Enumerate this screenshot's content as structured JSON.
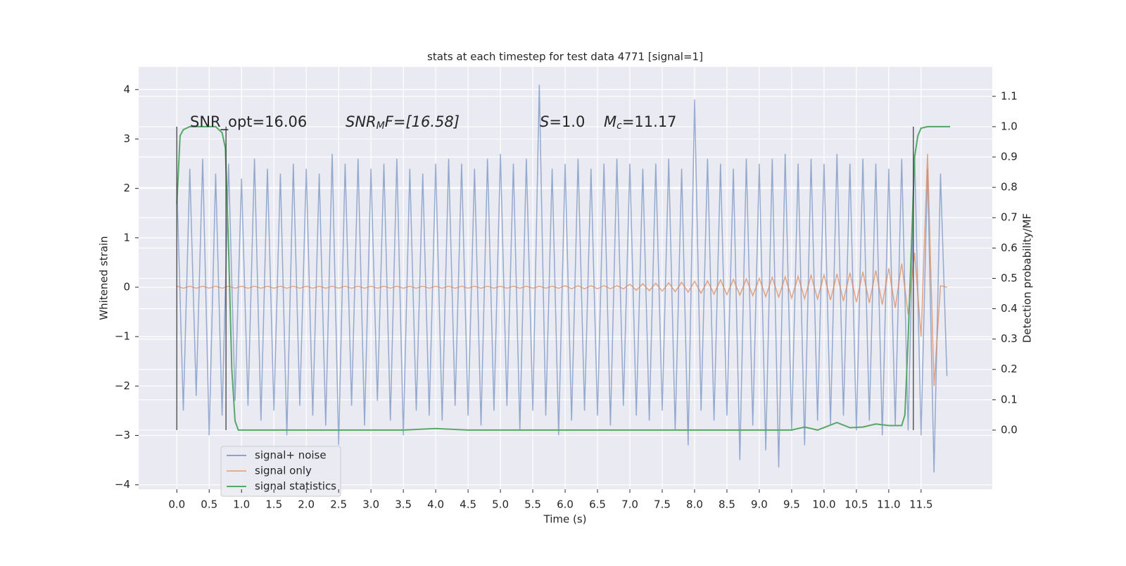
{
  "chart_data": {
    "type": "line",
    "title": "stats at each timestep for test data 4771 [signal=1]",
    "xlabel": "Time (s)",
    "ylabel": "Whitened strain",
    "y2label": "Detection probability/MF",
    "xlim": [
      -0.59,
      12.6
    ],
    "ylim": [
      -4.09,
      4.46
    ],
    "y2lim": [
      -0.195,
      1.197
    ],
    "xticks": [
      {
        "value": 0,
        "label": "0.0"
      },
      0.5,
      {
        "value": 1,
        "label": "1.0"
      },
      1.5,
      {
        "value": 2,
        "label": "2.0"
      },
      2.5,
      {
        "value": 3,
        "label": "3.0"
      },
      3.5,
      {
        "value": 4,
        "label": "4.0"
      },
      4.5,
      {
        "value": 5,
        "label": "5.0"
      },
      5.5,
      {
        "value": 6,
        "label": "6.0"
      },
      6.5,
      {
        "value": 7,
        "label": "7.0"
      },
      7.5,
      {
        "value": 8,
        "label": "8.0"
      },
      8.5,
      {
        "value": 9,
        "label": "9.0"
      },
      9.5,
      {
        "value": 10,
        "label": "10.0"
      },
      10.5,
      {
        "value": 11,
        "label": "11.0"
      },
      11.5
    ],
    "yticks": [
      {
        "value": -4,
        "label": "−4"
      },
      {
        "value": -3,
        "label": "−3"
      },
      {
        "value": -2,
        "label": "−2"
      },
      {
        "value": -1,
        "label": "−1"
      },
      0,
      1,
      2,
      3,
      4
    ],
    "y2ticks": [
      {
        "value": 0,
        "label": "0.0"
      },
      0.1,
      0.2,
      0.3,
      0.4,
      0.5,
      0.6,
      0.7,
      0.8,
      0.9,
      {
        "value": 1,
        "label": "1.0"
      },
      1.1
    ],
    "grid": true,
    "legend": "lower left",
    "annotations": [
      {
        "text": "SNR_opt=16.06"
      },
      {
        "base": "SNR",
        "sub": "M",
        "rest": "F=[16.58]"
      },
      {
        "base": "S",
        "rest": "=1.0"
      },
      {
        "base": "M",
        "sub": "c",
        "rest": "=11.17"
      }
    ],
    "vlines": {
      "color": "#333333",
      "x": [
        0,
        0.76,
        11.38
      ]
    },
    "x": [
      0.0,
      0.1,
      0.2,
      0.3,
      0.4,
      0.5,
      0.6,
      0.7,
      0.8,
      0.9,
      1.0,
      1.1,
      1.2,
      1.3,
      1.4,
      1.5,
      1.6,
      1.7,
      1.8,
      1.9,
      2.0,
      2.1,
      2.2,
      2.3,
      2.4,
      2.5,
      2.6,
      2.7,
      2.8,
      2.9,
      3.0,
      3.1,
      3.2,
      3.3,
      3.4,
      3.5,
      3.6,
      3.7,
      3.8,
      3.9,
      4.0,
      4.1,
      4.2,
      4.3,
      4.4,
      4.5,
      4.6,
      4.7,
      4.8,
      4.9,
      5.0,
      5.1,
      5.2,
      5.3,
      5.4,
      5.5,
      5.6,
      5.7,
      5.8,
      5.9,
      6.0,
      6.1,
      6.2,
      6.3,
      6.4,
      6.5,
      6.6,
      6.7,
      6.8,
      6.9,
      7.0,
      7.1,
      7.2,
      7.3,
      7.4,
      7.5,
      7.6,
      7.7,
      7.8,
      7.9,
      8.0,
      8.1,
      8.2,
      8.3,
      8.4,
      8.5,
      8.6,
      8.7,
      8.8,
      8.9,
      9.0,
      9.1,
      9.2,
      9.3,
      9.4,
      9.5,
      9.6,
      9.7,
      9.8,
      9.9,
      10.0,
      10.1,
      10.2,
      10.3,
      10.4,
      10.5,
      10.6,
      10.7,
      10.8,
      10.9,
      11.0,
      11.1,
      11.2,
      11.3,
      11.4,
      11.5,
      11.6,
      11.7,
      11.8,
      11.9
    ],
    "series": [
      {
        "name": "signal+ noise",
        "color": "#4c72b0",
        "values": [
          2.1,
          -2.5,
          2.4,
          -2.2,
          2.6,
          -3.0,
          2.3,
          -2.6,
          2.5,
          -2.3,
          2.2,
          -2.4,
          2.6,
          -2.7,
          2.4,
          -2.5,
          2.3,
          -3.0,
          2.5,
          -2.4,
          2.4,
          -2.6,
          2.3,
          -2.8,
          2.7,
          -3.2,
          2.5,
          -2.4,
          2.6,
          -2.8,
          2.4,
          -2.3,
          2.5,
          -2.7,
          2.6,
          -3.0,
          2.4,
          -2.5,
          2.3,
          -2.6,
          2.5,
          -2.7,
          2.6,
          -2.4,
          2.5,
          -2.6,
          2.4,
          -2.8,
          2.6,
          -2.5,
          2.7,
          -2.4,
          2.5,
          -2.9,
          2.6,
          -2.5,
          4.1,
          -2.6,
          2.4,
          -3.0,
          2.5,
          -2.7,
          2.6,
          -2.5,
          2.4,
          -2.6,
          2.5,
          -2.8,
          2.6,
          -2.4,
          2.5,
          -2.6,
          2.4,
          -2.7,
          2.5,
          -2.5,
          2.6,
          -2.9,
          2.4,
          -3.2,
          3.8,
          -2.5,
          2.6,
          -2.7,
          2.5,
          -2.6,
          2.4,
          -3.5,
          2.6,
          -2.8,
          2.5,
          -3.3,
          2.6,
          -3.65,
          2.7,
          -2.9,
          2.5,
          -3.2,
          2.6,
          -2.7,
          2.5,
          -2.8,
          2.7,
          -2.6,
          2.5,
          -2.9,
          2.6,
          -2.7,
          2.5,
          -3.0,
          2.4,
          -2.8,
          2.6,
          -2.9,
          2.7,
          -3.0,
          2.4,
          -3.75,
          2.3,
          -1.8
        ]
      },
      {
        "name": "signal only",
        "color": "#dd8452",
        "values": [
          0.02,
          -0.02,
          0.02,
          -0.02,
          0.02,
          -0.02,
          0.02,
          -0.02,
          0.02,
          -0.02,
          0.02,
          -0.02,
          0.02,
          -0.02,
          0.02,
          -0.02,
          0.02,
          -0.02,
          0.02,
          -0.02,
          0.02,
          -0.02,
          0.02,
          -0.02,
          0.02,
          -0.02,
          0.02,
          -0.02,
          0.02,
          -0.02,
          0.02,
          -0.02,
          0.02,
          -0.02,
          0.02,
          -0.02,
          0.02,
          -0.02,
          0.02,
          -0.02,
          0.02,
          -0.02,
          0.02,
          -0.02,
          0.02,
          -0.02,
          0.02,
          -0.02,
          0.02,
          -0.02,
          0.02,
          -0.02,
          0.02,
          -0.02,
          0.02,
          -0.02,
          0.02,
          -0.02,
          0.02,
          -0.02,
          0.03,
          -0.03,
          0.03,
          -0.03,
          0.03,
          -0.03,
          0.03,
          -0.03,
          0.03,
          -0.03,
          0.06,
          -0.06,
          0.07,
          -0.07,
          0.08,
          -0.08,
          0.09,
          -0.09,
          0.1,
          -0.1,
          0.12,
          -0.12,
          0.13,
          -0.14,
          0.15,
          -0.15,
          0.16,
          -0.16,
          0.17,
          -0.17,
          0.18,
          -0.19,
          0.2,
          -0.2,
          0.21,
          -0.22,
          0.22,
          -0.23,
          0.24,
          -0.24,
          0.25,
          -0.26,
          0.27,
          -0.28,
          0.29,
          -0.3,
          0.31,
          -0.32,
          0.34,
          -0.35,
          0.38,
          -0.42,
          0.48,
          -0.55,
          0.7,
          -1.0,
          2.7,
          -2.0,
          0.03,
          0.0
        ]
      },
      {
        "name": "signal statistics",
        "color": "#55a868",
        "axis": "y2",
        "x": [
          0.0,
          0.05,
          0.1,
          0.2,
          0.4,
          0.6,
          0.7,
          0.75,
          0.8,
          0.85,
          0.9,
          0.95,
          2.0,
          3.5,
          4.0,
          4.5,
          6.0,
          7.0,
          9.5,
          9.7,
          9.9,
          10.2,
          10.4,
          10.6,
          10.8,
          11.0,
          11.2,
          11.25,
          11.3,
          11.35,
          11.4,
          11.45,
          11.5,
          11.6,
          11.95
        ],
        "values": [
          0.745,
          0.97,
          0.99,
          1.0,
          1.0,
          1.0,
          0.98,
          0.93,
          0.6,
          0.2,
          0.03,
          0.0,
          0.0,
          0.0,
          0.005,
          0.0,
          0.0,
          0.0,
          0.0,
          0.01,
          0.0,
          0.025,
          0.008,
          0.01,
          0.02,
          0.015,
          0.015,
          0.05,
          0.3,
          0.6,
          0.9,
          0.97,
          0.995,
          1.0,
          1.0
        ]
      }
    ]
  }
}
